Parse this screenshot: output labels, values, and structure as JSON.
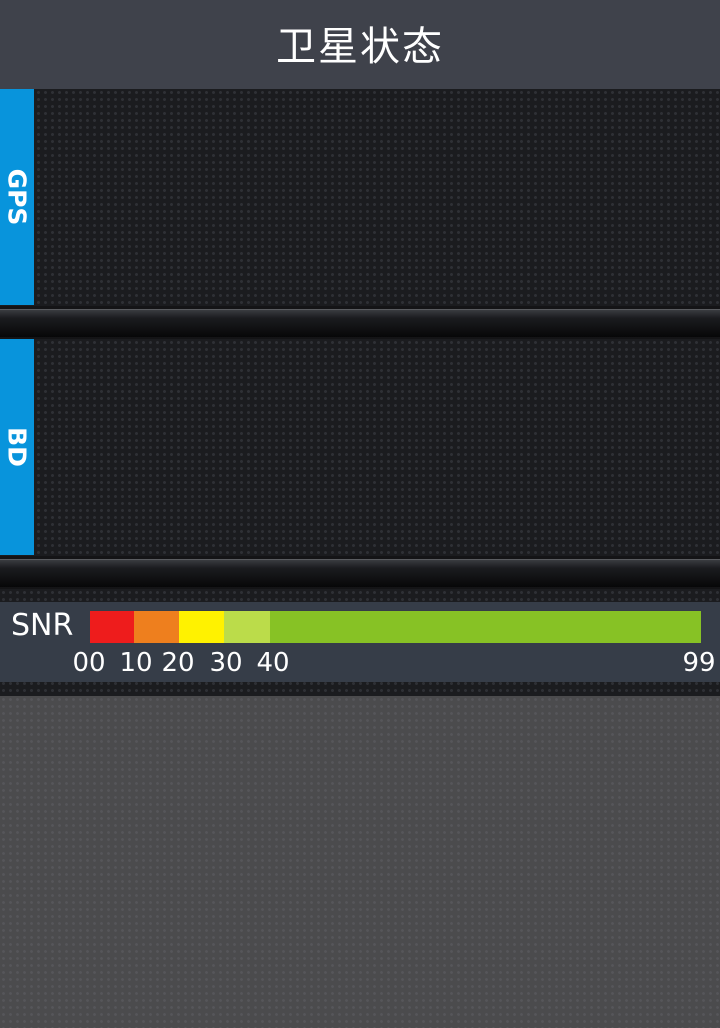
{
  "header": {
    "title": "卫星状态"
  },
  "panels": {
    "gps": {
      "tab_label": "GPS"
    },
    "bd": {
      "tab_label": "BD"
    }
  },
  "snr_legend": {
    "label": "SNR",
    "segments": [
      {
        "from": 0,
        "to": 10,
        "color": "#ee1c1c"
      },
      {
        "from": 10,
        "to": 20,
        "color": "#ee7f1e"
      },
      {
        "from": 20,
        "to": 30,
        "color": "#fff200"
      },
      {
        "from": 30,
        "to": 40,
        "color": "#bbdc4a"
      },
      {
        "from": 40,
        "to": 99,
        "color": "#87c225"
      }
    ],
    "ticks": [
      "00",
      "10",
      "20",
      "30",
      "40",
      "99"
    ]
  },
  "colors": {
    "title_bar": "#3f424b",
    "tab_accent": "#0894dc",
    "snr_panel": "#363d48"
  }
}
